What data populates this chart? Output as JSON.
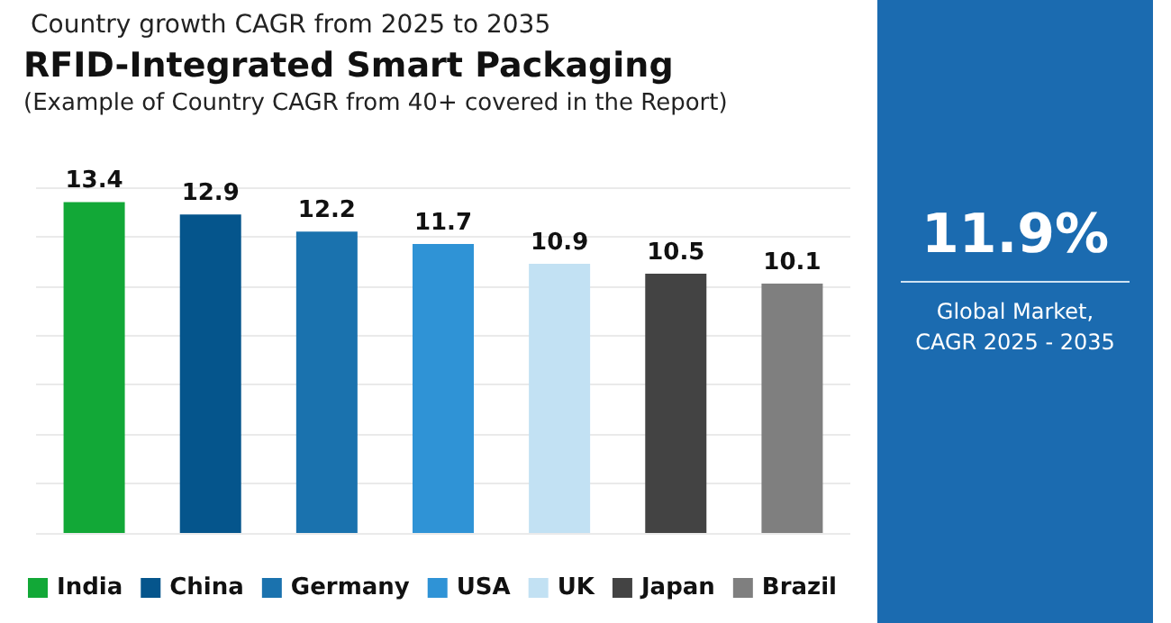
{
  "chart_data": {
    "type": "bar",
    "title": "Country growth CAGR from 2025 to 2035",
    "subtitle": "RFID-Integrated Smart Packaging\n(Example of Country CAGR from 40+ covered in the Report)",
    "categories": [
      null,
      null,
      null,
      null,
      null,
      null,
      null
    ],
    "series": [
      {
        "name": "India",
        "color": "#12a837",
        "values": [
          13.4,
          null,
          null,
          null,
          null,
          null,
          null
        ]
      },
      {
        "name": "China",
        "color": "#05558c",
        "values": [
          null,
          12.9,
          null,
          null,
          null,
          null,
          null
        ]
      },
      {
        "name": "Germany",
        "color": "#1a72ae",
        "values": [
          null,
          null,
          12.2,
          null,
          null,
          null,
          null
        ]
      },
      {
        "name": "USA",
        "color": "#2f93d6",
        "values": [
          null,
          null,
          null,
          11.7,
          null,
          null,
          null
        ]
      },
      {
        "name": "UK",
        "color": "#c2e1f3",
        "values": [
          null,
          null,
          null,
          null,
          10.9,
          null,
          null
        ]
      },
      {
        "name": "Japan",
        "color": "#434343",
        "values": [
          null,
          null,
          null,
          null,
          null,
          10.5,
          null
        ]
      },
      {
        "name": "Brazil",
        "color": "#7f7f7f",
        "values": [
          null,
          null,
          null,
          null,
          null,
          null,
          10.1
        ]
      }
    ],
    "ylim": [
      0,
      14
    ],
    "yticks": [
      {
        "value": 0,
        "label": null
      },
      {
        "value": 2,
        "label": null
      },
      {
        "value": 4,
        "label": null
      },
      {
        "value": 6,
        "label": null
      },
      {
        "value": 8,
        "label": null
      },
      {
        "value": 10,
        "label": null
      },
      {
        "value": 12,
        "label": null
      },
      {
        "value": 14,
        "label": null
      }
    ],
    "grid": "y",
    "legend": "bottom",
    "stacked": true,
    "data_labels": true,
    "annotations": [
      "11.9%",
      "Global Market,\nCAGR 2025 - 2035"
    ]
  }
}
